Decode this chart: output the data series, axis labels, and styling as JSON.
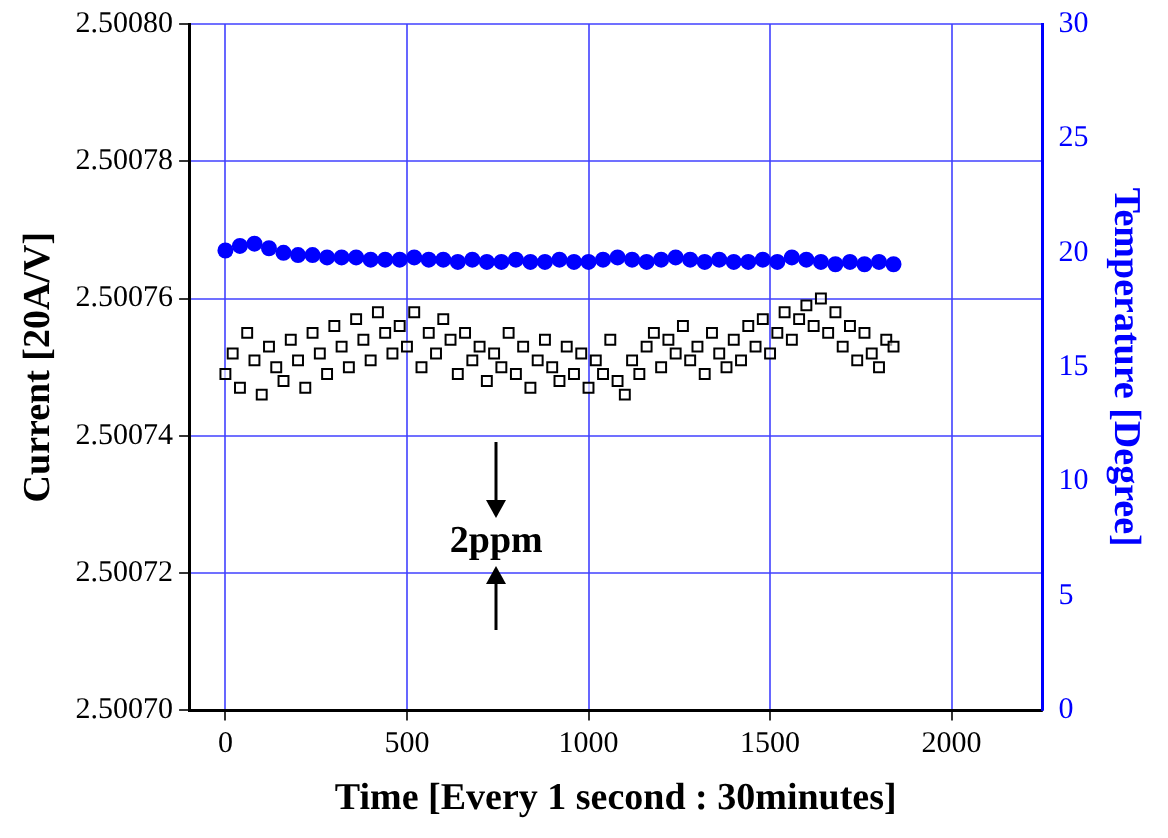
{
  "chart_data": {
    "type": "scatter",
    "xlabel": "Time [Every 1 second : 30minutes]",
    "ylabel": "Current [20A/V]",
    "y2label": "Temperature [Degree]",
    "xlim": [
      -100,
      2250
    ],
    "xticks": [
      0,
      500,
      1000,
      1500,
      2000
    ],
    "ylim": [
      2.5007,
      2.5008
    ],
    "yticks": [
      {
        "value": 2.5007,
        "label": "2.50070"
      },
      {
        "value": 2.50072,
        "label": "2.50072"
      },
      {
        "value": 2.50074,
        "label": "2.50074"
      },
      {
        "value": 2.50076,
        "label": "2.50076"
      },
      {
        "value": 2.50078,
        "label": "2.50078"
      },
      {
        "value": 2.5008,
        "label": "2.50080"
      }
    ],
    "y2lim": [
      0,
      30
    ],
    "y2ticks": [
      0,
      5,
      10,
      15,
      20,
      25,
      30
    ],
    "grid": true,
    "legend": false,
    "annotations": [
      "2ppm"
    ],
    "series": [
      {
        "color": "#000000",
        "marker": "square",
        "x": [
          0,
          20,
          40,
          60,
          80,
          100,
          120,
          140,
          160,
          180,
          200,
          220,
          240,
          260,
          280,
          300,
          320,
          340,
          360,
          380,
          400,
          420,
          440,
          460,
          480,
          500,
          520,
          540,
          560,
          580,
          600,
          620,
          640,
          660,
          680,
          700,
          720,
          740,
          760,
          780,
          800,
          820,
          840,
          860,
          880,
          900,
          920,
          940,
          960,
          980,
          1000,
          1020,
          1040,
          1060,
          1080,
          1100,
          1120,
          1140,
          1160,
          1180,
          1200,
          1220,
          1240,
          1260,
          1280,
          1300,
          1320,
          1340,
          1360,
          1380,
          1400,
          1420,
          1440,
          1460,
          1480,
          1500,
          1520,
          1540,
          1560,
          1580,
          1600,
          1620,
          1640,
          1660,
          1680,
          1700,
          1720,
          1740,
          1760,
          1780,
          1800,
          1820,
          1840
        ],
        "values": [
          2.500749,
          2.500752,
          2.500747,
          2.500755,
          2.500751,
          2.500746,
          2.500753,
          2.50075,
          2.500748,
          2.500754,
          2.500751,
          2.500747,
          2.500755,
          2.500752,
          2.500749,
          2.500756,
          2.500753,
          2.50075,
          2.500757,
          2.500754,
          2.500751,
          2.500758,
          2.500755,
          2.500752,
          2.500756,
          2.500753,
          2.500758,
          2.50075,
          2.500755,
          2.500752,
          2.500757,
          2.500754,
          2.500749,
          2.500755,
          2.500751,
          2.500753,
          2.500748,
          2.500752,
          2.50075,
          2.500755,
          2.500749,
          2.500753,
          2.500747,
          2.500751,
          2.500754,
          2.50075,
          2.500748,
          2.500753,
          2.500749,
          2.500752,
          2.500747,
          2.500751,
          2.500749,
          2.500754,
          2.500748,
          2.500746,
          2.500751,
          2.500749,
          2.500753,
          2.500755,
          2.50075,
          2.500754,
          2.500752,
          2.500756,
          2.500751,
          2.500753,
          2.500749,
          2.500755,
          2.500752,
          2.50075,
          2.500754,
          2.500751,
          2.500756,
          2.500753,
          2.500757,
          2.500752,
          2.500755,
          2.500758,
          2.500754,
          2.500757,
          2.500759,
          2.500756,
          2.50076,
          2.500755,
          2.500758,
          2.500753,
          2.500756,
          2.500751,
          2.500755,
          2.500752,
          2.50075,
          2.500754,
          2.500753
        ]
      },
      {
        "color": "#0000ff",
        "marker": "circle",
        "axis": "y2",
        "x": [
          0,
          40,
          80,
          120,
          160,
          200,
          240,
          280,
          320,
          360,
          400,
          440,
          480,
          520,
          560,
          600,
          640,
          680,
          720,
          760,
          800,
          840,
          880,
          920,
          960,
          1000,
          1040,
          1080,
          1120,
          1160,
          1200,
          1240,
          1280,
          1320,
          1360,
          1400,
          1440,
          1480,
          1520,
          1560,
          1600,
          1640,
          1680,
          1720,
          1760,
          1800,
          1840
        ],
        "values": [
          20.1,
          20.3,
          20.4,
          20.2,
          20.0,
          19.9,
          19.9,
          19.8,
          19.8,
          19.8,
          19.7,
          19.7,
          19.7,
          19.8,
          19.7,
          19.7,
          19.6,
          19.7,
          19.6,
          19.6,
          19.7,
          19.6,
          19.6,
          19.7,
          19.6,
          19.6,
          19.7,
          19.8,
          19.7,
          19.6,
          19.7,
          19.8,
          19.7,
          19.6,
          19.7,
          19.6,
          19.6,
          19.7,
          19.6,
          19.8,
          19.7,
          19.6,
          19.5,
          19.6,
          19.5,
          19.6,
          19.5
        ]
      }
    ]
  }
}
